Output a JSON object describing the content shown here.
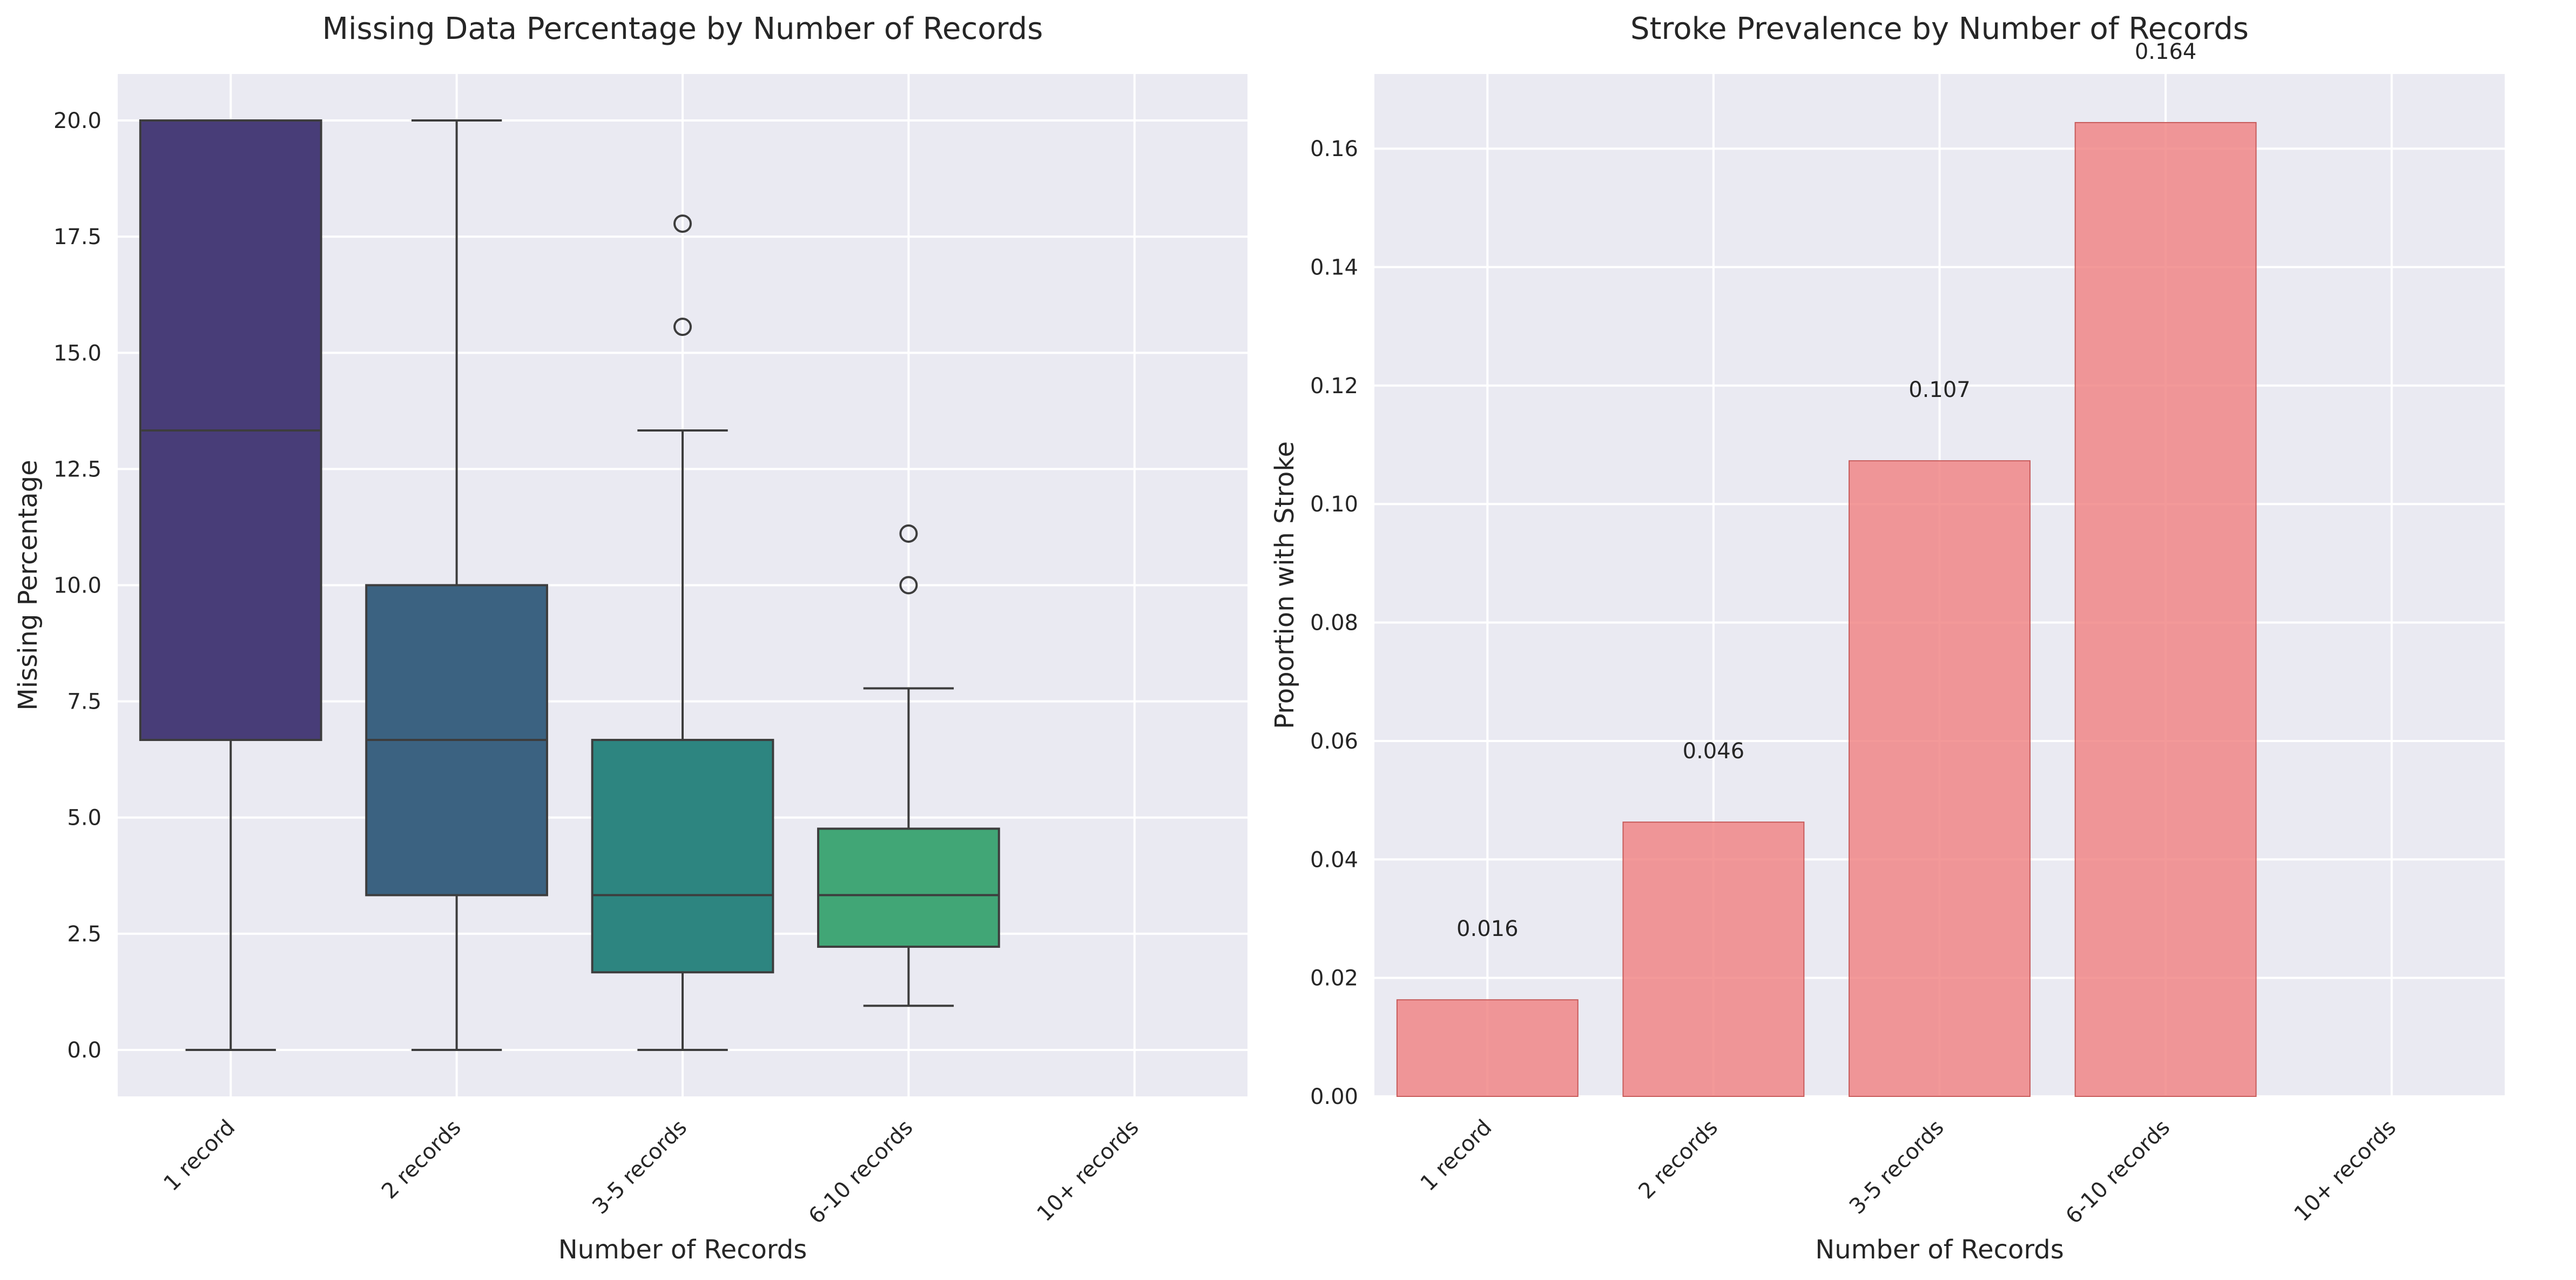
{
  "chart_data": [
    {
      "type": "box",
      "title": "Missing Data Percentage by Number of Records",
      "xlabel": "Number of Records",
      "ylabel": "Missing Percentage",
      "categories": [
        "1 record",
        "2 records",
        "3-5 records",
        "6-10 records",
        "10+ records"
      ],
      "ylim": [
        -1.0,
        21.0
      ],
      "yticks": [
        0.0,
        2.5,
        5.0,
        7.5,
        10.0,
        12.5,
        15.0,
        17.5,
        20.0
      ],
      "ytick_labels": [
        "0.0",
        "2.5",
        "5.0",
        "7.5",
        "10.0",
        "12.5",
        "15.0",
        "17.5",
        "20.0"
      ],
      "grid": true,
      "boxes": [
        {
          "category": "1 record",
          "whisker_low": 0.0,
          "q1": 6.67,
          "median": 13.33,
          "q3": 20.0,
          "whisker_high": 20.0,
          "outliers": [],
          "color": "#483d78"
        },
        {
          "category": "2 records",
          "whisker_low": 0.0,
          "q1": 3.33,
          "median": 6.67,
          "q3": 10.0,
          "whisker_high": 20.0,
          "outliers": [],
          "color": "#3b6281"
        },
        {
          "category": "3-5 records",
          "whisker_low": 0.0,
          "q1": 1.67,
          "median": 3.33,
          "q3": 6.67,
          "whisker_high": 13.33,
          "outliers": [
            15.56,
            17.78
          ],
          "color": "#2d8580"
        },
        {
          "category": "6-10 records",
          "whisker_low": 0.95,
          "q1": 2.22,
          "median": 3.33,
          "q3": 4.76,
          "whisker_high": 7.78,
          "outliers": [
            10.0,
            11.11
          ],
          "color": "#41a676"
        },
        {
          "category": "10+ records",
          "whisker_low": null,
          "q1": null,
          "median": null,
          "q3": null,
          "whisker_high": null,
          "outliers": [],
          "color": "#8fd46b"
        }
      ]
    },
    {
      "type": "bar",
      "title": "Stroke Prevalence by Number of Records",
      "xlabel": "Number of Records",
      "ylabel": "Proportion with Stroke",
      "categories": [
        "1 record",
        "2 records",
        "3-5 records",
        "6-10 records",
        "10+ records"
      ],
      "values": [
        0.0163,
        0.0463,
        0.1073,
        0.1644,
        null
      ],
      "value_labels": [
        "0.016",
        "0.046",
        "0.107",
        "0.164",
        ""
      ],
      "ylim": [
        0.0,
        0.1726
      ],
      "yticks": [
        0.0,
        0.02,
        0.04,
        0.06,
        0.08,
        0.1,
        0.12,
        0.14,
        0.16
      ],
      "ytick_labels": [
        "0.00",
        "0.02",
        "0.04",
        "0.06",
        "0.08",
        "0.10",
        "0.12",
        "0.14",
        "0.16"
      ],
      "bar_color": "#f08080",
      "grid": true
    }
  ]
}
